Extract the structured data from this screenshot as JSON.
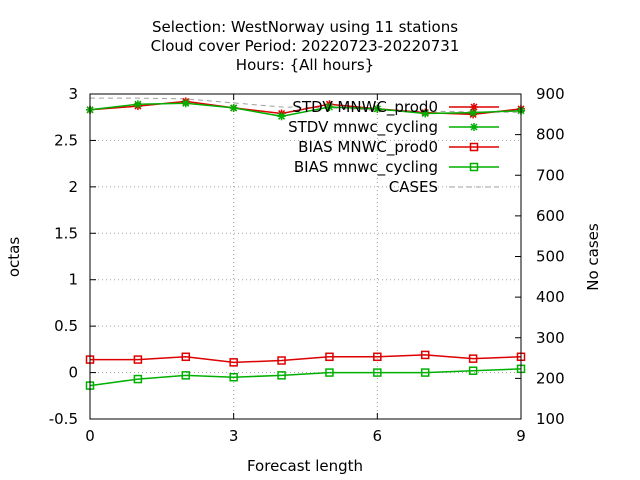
{
  "chart_data": {
    "type": "line",
    "title_lines": [
      "Selection: WestNorway using    11 stations",
      "Cloud cover   Period: 20220723-20220731",
      "Hours: {All hours}"
    ],
    "xlabel": "Forecast length",
    "ylabel": "octas",
    "y2label": "No cases",
    "xlim": [
      0,
      9
    ],
    "ylim": [
      -0.5,
      3
    ],
    "y2lim": [
      100,
      900
    ],
    "xticks": [
      0,
      3,
      6,
      9
    ],
    "xtick_labels": [
      "0",
      "3",
      "6",
      "9"
    ],
    "yticks": [
      -0.5,
      0,
      0.5,
      1,
      1.5,
      2,
      2.5,
      3
    ],
    "ytick_labels": [
      "-0.5",
      "0",
      "0.5",
      "1",
      "1.5",
      "2",
      "2.5",
      "3"
    ],
    "y2ticks": [
      100,
      200,
      300,
      400,
      500,
      600,
      700,
      800,
      900
    ],
    "y2tick_labels": [
      "100",
      "200",
      "300",
      "400",
      "500",
      "600",
      "700",
      "800",
      "900"
    ],
    "grid": true,
    "legend_position": "top-right",
    "x": [
      0,
      1,
      2,
      3,
      4,
      5,
      6,
      7,
      8,
      9
    ],
    "series": [
      {
        "name": "STDV MNWC_prod0",
        "axis": "y",
        "marker": "star",
        "color": "#dd0000",
        "values": [
          2.83,
          2.87,
          2.92,
          2.85,
          2.79,
          2.89,
          2.84,
          2.8,
          2.78,
          2.84
        ]
      },
      {
        "name": "STDV mnwc_cycling",
        "axis": "y",
        "marker": "star",
        "color": "#00b000",
        "values": [
          2.83,
          2.89,
          2.9,
          2.85,
          2.76,
          2.86,
          2.84,
          2.79,
          2.8,
          2.82
        ]
      },
      {
        "name": "BIAS MNWC_prod0",
        "axis": "y",
        "marker": "square",
        "color": "#dd0000",
        "values": [
          0.14,
          0.14,
          0.17,
          0.11,
          0.13,
          0.17,
          0.17,
          0.19,
          0.15,
          0.17
        ]
      },
      {
        "name": "BIAS mnwc_cycling",
        "axis": "y",
        "marker": "square",
        "color": "#00b000",
        "values": [
          -0.14,
          -0.07,
          -0.03,
          -0.05,
          -0.03,
          0.0,
          0.0,
          0.0,
          0.02,
          0.04
        ]
      },
      {
        "name": "CASES",
        "axis": "y2",
        "marker": "none",
        "color": "#a0a0a0",
        "dashed": true,
        "values": [
          890,
          890,
          888,
          878,
          868,
          866,
          860,
          858,
          856,
          855
        ]
      }
    ]
  }
}
